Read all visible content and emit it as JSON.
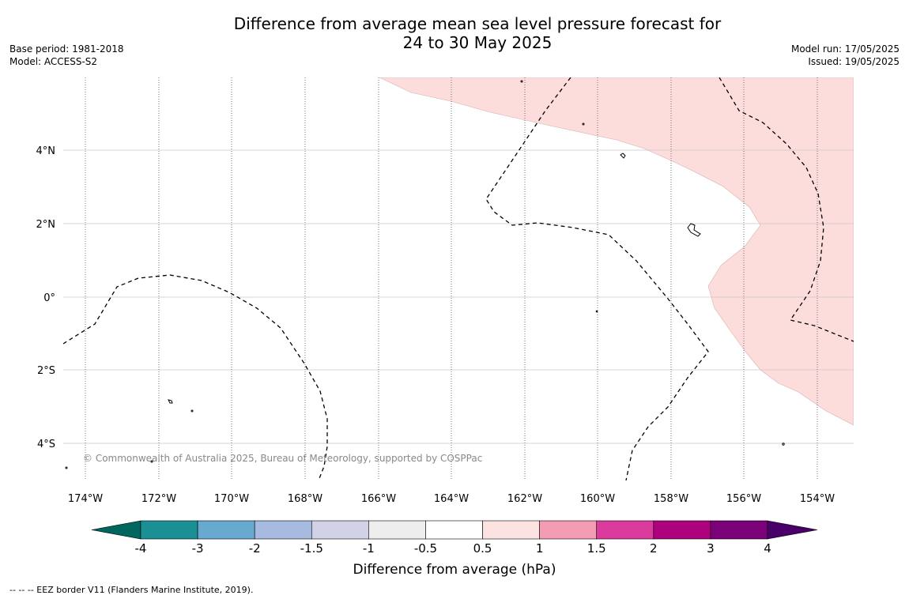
{
  "title": {
    "line1": "Difference from average mean sea level pressure forecast for",
    "line2": "24 to 30 May 2025"
  },
  "meta_left": {
    "base_period": "Base period: 1981-2018",
    "model": "Model: ACCESS-S2"
  },
  "meta_right": {
    "model_run": "Model run: 17/05/2025",
    "issued": "Issued: 19/05/2025"
  },
  "map": {
    "lat_labels": [
      "4°N",
      "2°N",
      "0°",
      "2°S",
      "4°S"
    ],
    "lon_labels": [
      "174°W",
      "172°W",
      "170°W",
      "168°W",
      "166°W",
      "164°W",
      "162°W",
      "160°W",
      "158°W",
      "156°W",
      "154°W"
    ],
    "copyright": "© Commonwealth of Australia 2025, Bureau of Meteorology, supported by COSPPac",
    "anomaly_fill_color": "#fddcdc",
    "shaded_category": "0.5 to 1"
  },
  "colorbar": {
    "ticks": [
      "-4",
      "-3",
      "-2",
      "-1.5",
      "-1",
      "-0.5",
      "0.5",
      "1",
      "1.5",
      "2",
      "3",
      "4"
    ],
    "colors": [
      "#1a9094",
      "#68a9d0",
      "#a6bbdf",
      "#d1d1e8",
      "#eeeeee",
      "#ffffff",
      "#fde2e2",
      "#f59cb5",
      "#db3b9c",
      "#ad017e",
      "#7b0178"
    ],
    "under_color": "#01665e",
    "over_color": "#49006a",
    "label": "Difference from average (hPa)"
  },
  "footer": {
    "eez_note": "--  --  -- EEZ border V11 (Flanders Marine Institute, 2019)."
  }
}
